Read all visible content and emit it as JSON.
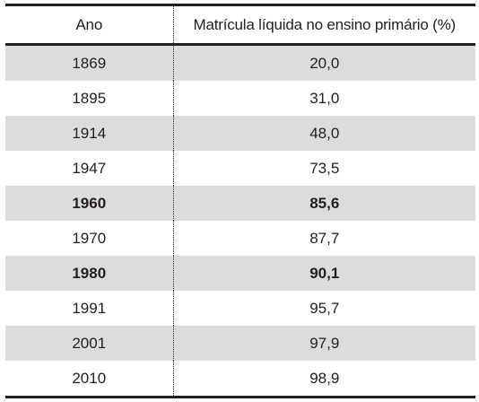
{
  "table": {
    "headers": {
      "year": "Ano",
      "value": "Matrícula líquida no ensino primário (%)"
    },
    "rows": [
      {
        "year": "1869",
        "value": "20,0",
        "shaded": true,
        "bold": false
      },
      {
        "year": "1895",
        "value": "31,0",
        "shaded": false,
        "bold": false
      },
      {
        "year": "1914",
        "value": "48,0",
        "shaded": true,
        "bold": false
      },
      {
        "year": "1947",
        "value": "73,5",
        "shaded": false,
        "bold": false
      },
      {
        "year": "1960",
        "value": "85,6",
        "shaded": true,
        "bold": true
      },
      {
        "year": "1970",
        "value": "87,7",
        "shaded": false,
        "bold": false
      },
      {
        "year": "1980",
        "value": "90,1",
        "shaded": true,
        "bold": true
      },
      {
        "year": "1991",
        "value": "95,7",
        "shaded": false,
        "bold": false
      },
      {
        "year": "2001",
        "value": "97,9",
        "shaded": true,
        "bold": false
      },
      {
        "year": "2010",
        "value": "98,9",
        "shaded": false,
        "bold": false
      }
    ]
  },
  "colors": {
    "text": "#231f20",
    "shaded_row": "#dddcdd",
    "background": "#ffffff"
  }
}
